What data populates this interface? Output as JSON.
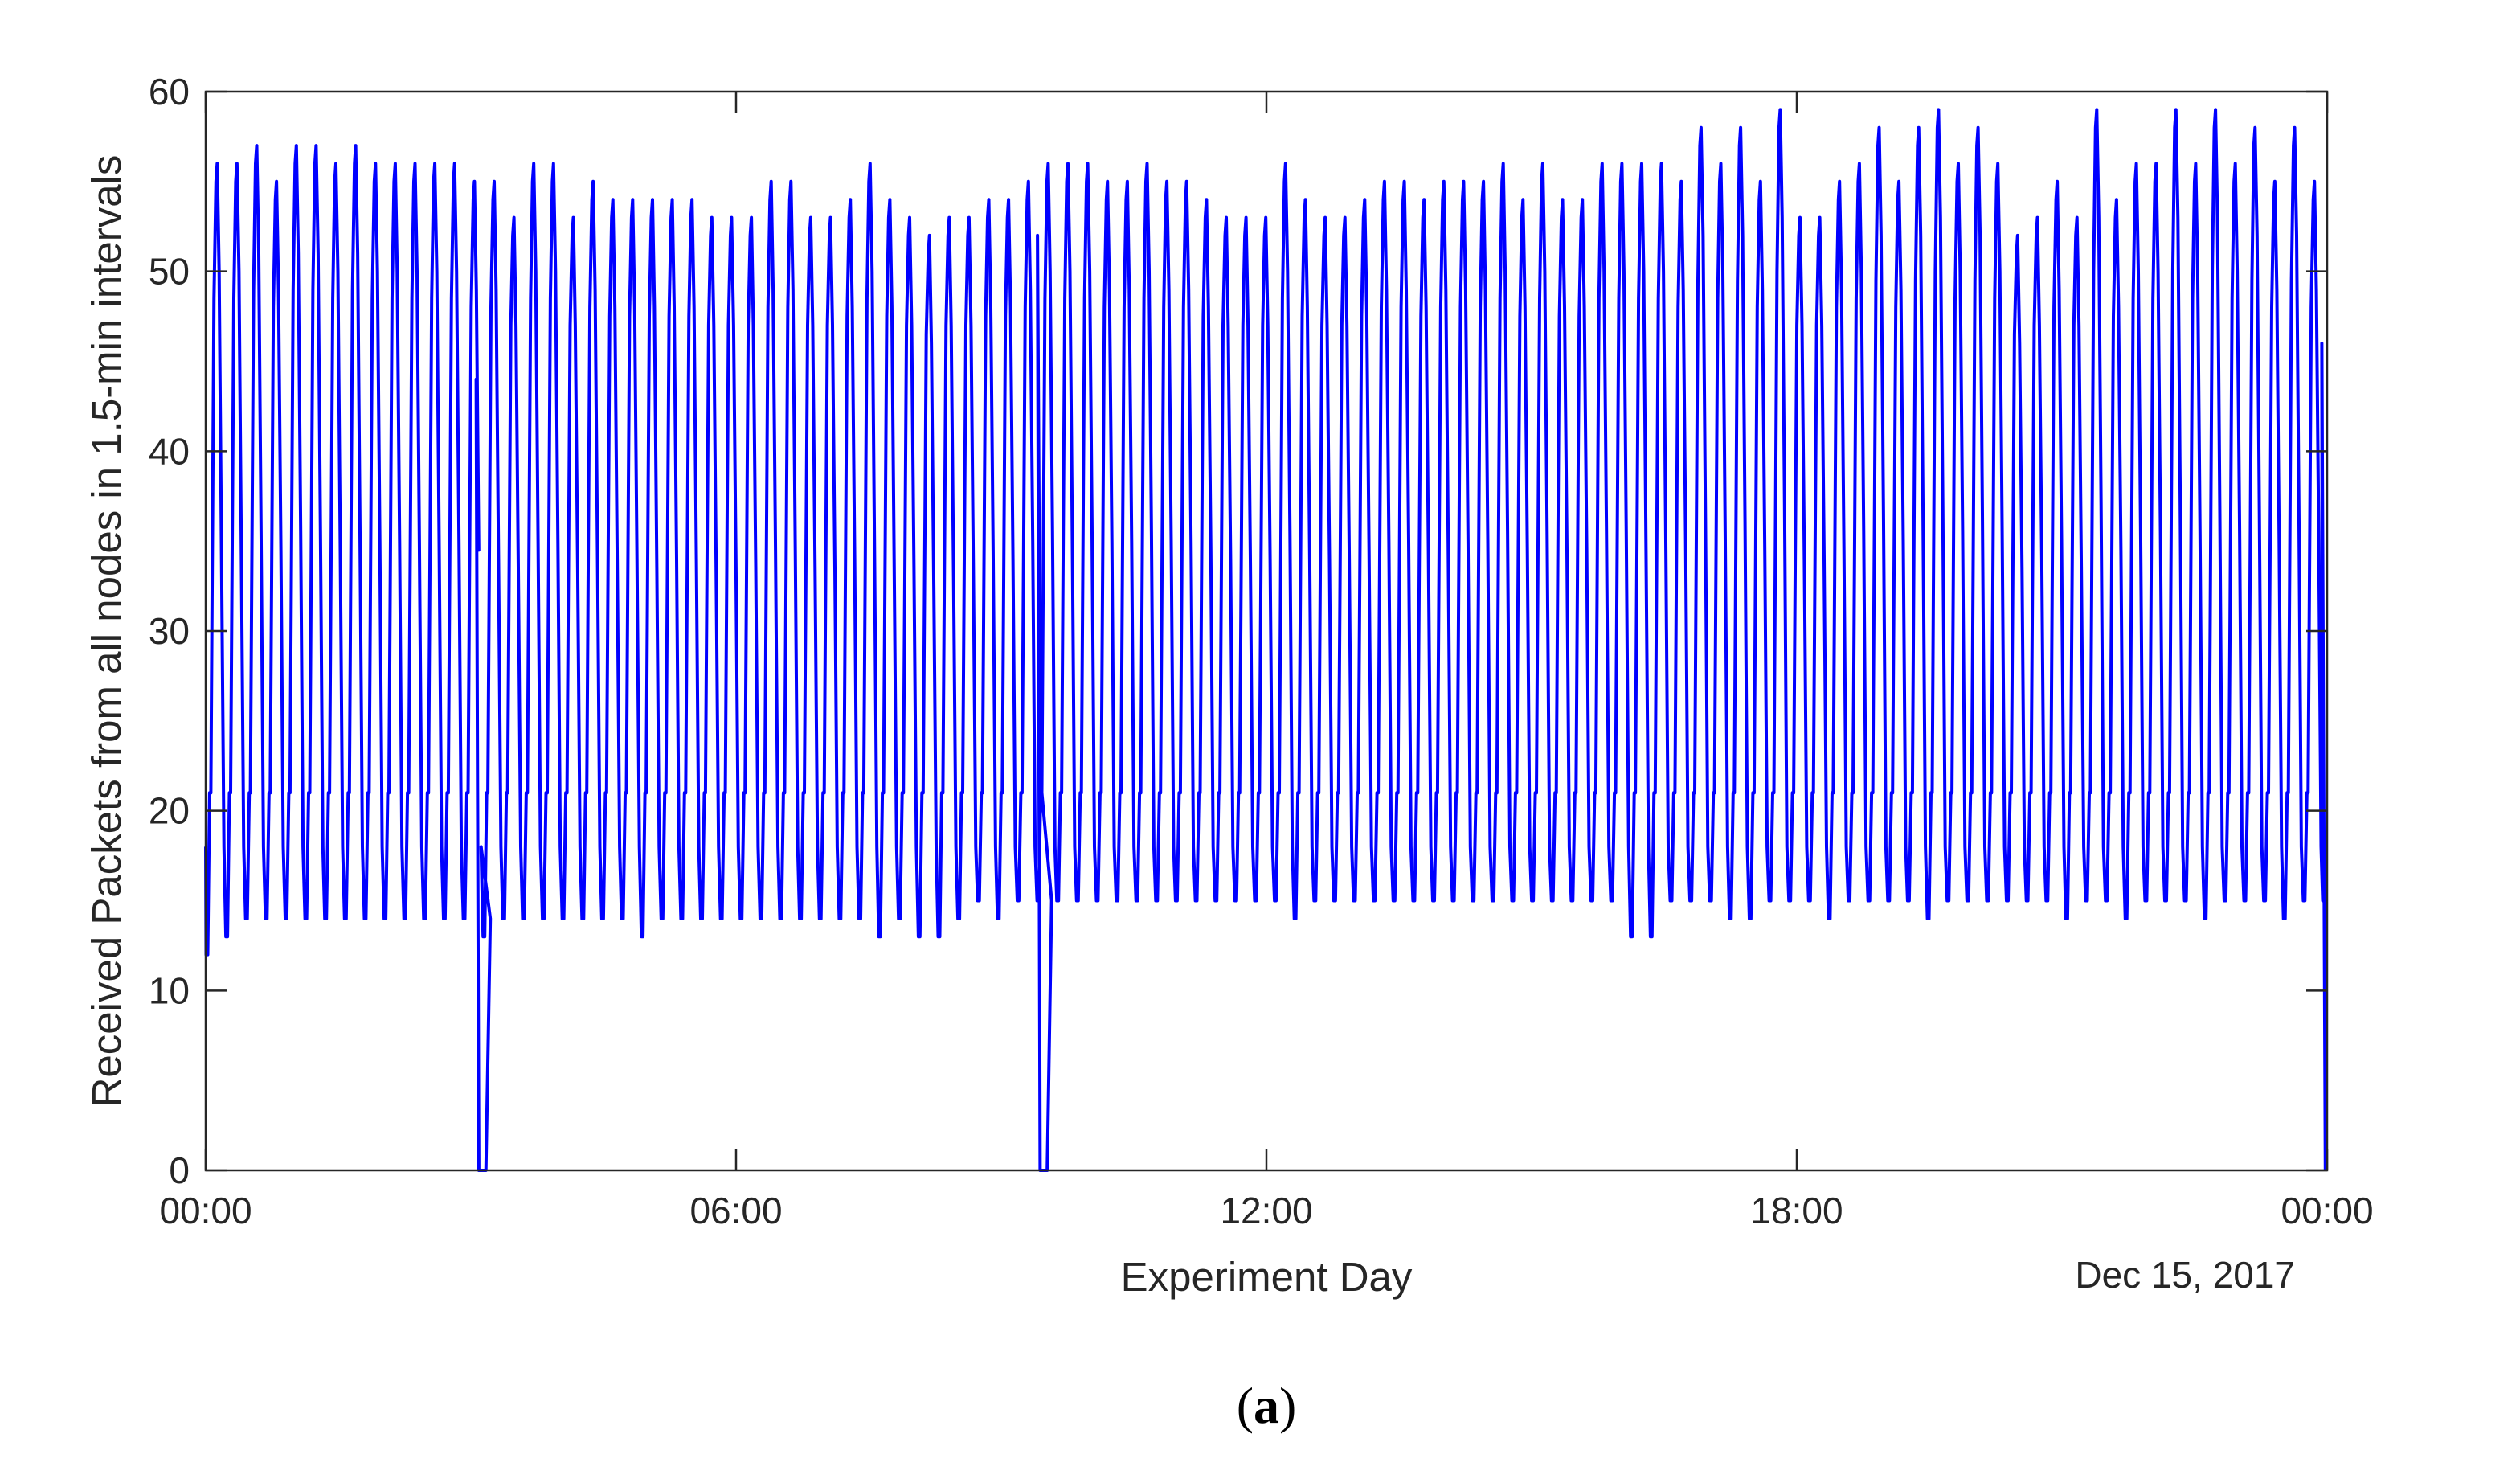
{
  "colors": {
    "series": "#0000ff",
    "axis": "#262626",
    "background": "#ffffff"
  },
  "caption": {
    "open": "(",
    "letter": "a",
    "close": ")"
  },
  "chart_data": {
    "type": "line",
    "xlabel": "Experiment Day",
    "ylabel": "Received Packets from all nodes in 1.5-min intervals",
    "date_label": "Dec 15, 2017",
    "x_unit": "hours",
    "xlim": [
      0,
      24
    ],
    "ylim": [
      0,
      60
    ],
    "x_ticks": [
      {
        "value": 0,
        "label": "00:00"
      },
      {
        "value": 6,
        "label": "06:00"
      },
      {
        "value": 12,
        "label": "12:00"
      },
      {
        "value": 18,
        "label": "18:00"
      },
      {
        "value": 24,
        "label": "00:00"
      }
    ],
    "y_ticks": [
      {
        "value": 0,
        "label": "0"
      },
      {
        "value": 10,
        "label": "10"
      },
      {
        "value": 20,
        "label": "20"
      },
      {
        "value": 30,
        "label": "30"
      },
      {
        "value": 40,
        "label": "40"
      },
      {
        "value": 50,
        "label": "50"
      },
      {
        "value": 60,
        "label": "60"
      }
    ],
    "grid": false,
    "box": true,
    "series": [
      {
        "note": "periodic traffic; each cycle rises from the trough to the peak and falls back",
        "cycle_peaks": [
          56,
          56,
          57,
          55,
          57,
          57,
          56,
          57,
          56,
          56,
          56,
          56,
          56,
          55,
          55,
          53,
          56,
          56,
          53,
          55,
          54,
          54,
          54,
          54,
          54,
          53,
          53,
          53,
          55,
          55,
          53,
          53,
          54,
          56,
          54,
          53,
          52,
          53,
          53,
          54,
          54,
          55,
          56,
          56,
          56,
          55,
          55,
          56,
          55,
          55,
          54,
          53,
          53,
          53,
          56,
          54,
          53,
          53,
          54,
          55,
          55,
          54,
          55,
          55,
          55,
          56,
          54,
          56,
          54,
          54,
          56,
          56,
          56,
          56,
          55,
          58,
          56,
          58,
          55,
          59,
          53,
          53,
          55,
          56,
          58,
          55,
          58,
          59,
          56,
          58,
          56,
          52,
          53,
          55,
          53,
          59,
          54,
          56,
          56,
          59,
          56,
          59,
          56,
          58,
          55,
          58,
          55
        ],
        "cycle_troughs": [
          12,
          13,
          14,
          14,
          14,
          14,
          14,
          14,
          14,
          14,
          14,
          14,
          14,
          14,
          13,
          14,
          14,
          14,
          14,
          14,
          14,
          14,
          13,
          14,
          14,
          14,
          14,
          14,
          14,
          14,
          14,
          14,
          14,
          14,
          13,
          14,
          13,
          13,
          14,
          15,
          14,
          15,
          15,
          15,
          15,
          15,
          15,
          15,
          15,
          15,
          15,
          15,
          15,
          15,
          15,
          14,
          15,
          15,
          15,
          15,
          15,
          15,
          15,
          15,
          15,
          15,
          15,
          15,
          15,
          15,
          15,
          15,
          13,
          13,
          15,
          15,
          15,
          14,
          14,
          15,
          15,
          15,
          14,
          15,
          15,
          15,
          15,
          14,
          15,
          15,
          15,
          15,
          15,
          15,
          14,
          15,
          15,
          14,
          15,
          15,
          15,
          14,
          15,
          15,
          15,
          14,
          15
        ],
        "first_value": 18,
        "last_value": 46,
        "dropouts": [
          {
            "x": 3.1,
            "y": 0,
            "from": 44,
            "to": 14
          },
          {
            "x": 9.45,
            "y": 0,
            "from": 52,
            "to": 15
          },
          {
            "x": 23.98,
            "y": 0,
            "from": 46,
            "to": 0
          }
        ]
      }
    ]
  }
}
